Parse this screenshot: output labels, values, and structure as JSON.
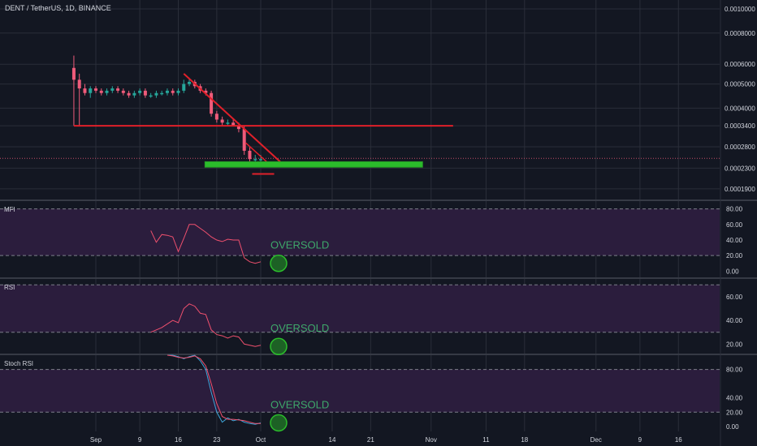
{
  "header": {
    "symbol_title": "DENT / TetherUS, 1D, BINANCE"
  },
  "colors": {
    "background": "#131722",
    "grid": "#2a2e39",
    "up_candle": "#26a69a",
    "down_candle": "#ef5b7a",
    "trendline": "#e0202a",
    "support_zone": "#2bbd2b",
    "oscillator_line": "#f0506e",
    "stoch_k": "#3da5d9",
    "stoch_d": "#f0506e",
    "band_fill": "#2b1d3d",
    "annotation_text": "#3ea86a",
    "annotation_circle": "#2bbd2b",
    "axis_text": "#d1d4dc"
  },
  "x_axis": {
    "tick_labels": [
      "Sep",
      "9",
      "16",
      "23",
      "Oct",
      "14",
      "21",
      "Nov",
      "11",
      "18",
      "Dec",
      "9",
      "16"
    ]
  },
  "price_axis": {
    "tick_labels": [
      "0.0010000",
      "0.0008000",
      "0.0006000",
      "0.0005000",
      "0.0004000",
      "0.0003400",
      "0.0002800",
      "0.0002300",
      "0.0001900"
    ],
    "scale": "log"
  },
  "panes": {
    "mfi": {
      "label": "MFI",
      "ticks": [
        "80.00",
        "60.00",
        "40.00",
        "20.00",
        "0.00"
      ],
      "annotation": "OVERSOLD"
    },
    "rsi": {
      "label": "RSI",
      "ticks": [
        "60.00",
        "40.00",
        "20.00"
      ],
      "annotation": "OVERSOLD"
    },
    "stoch": {
      "label": "Stoch RSI",
      "ticks": [
        "80.00",
        "40.00",
        "20.00",
        "0.00"
      ],
      "annotation": "OVERSOLD"
    }
  },
  "chart_data": [
    {
      "type": "candlestick",
      "title": "DENT / TetherUS, 1D, BINANCE",
      "x_range": [
        "Aug 27",
        "Dec 18"
      ],
      "y_scale": "log",
      "ylim": [
        0.00018,
        0.00105
      ],
      "candles": [
        {
          "date": "Aug 28",
          "o": 0.00058,
          "h": 0.00065,
          "l": 0.00034,
          "c": 0.00052
        },
        {
          "date": "Aug 29",
          "o": 0.00052,
          "h": 0.00055,
          "l": 0.00034,
          "c": 0.00048
        },
        {
          "date": "Aug 30",
          "o": 0.00048,
          "h": 0.0005,
          "l": 0.00045,
          "c": 0.00046
        },
        {
          "date": "Aug 31",
          "o": 0.00046,
          "h": 0.00049,
          "l": 0.00044,
          "c": 0.00048
        },
        {
          "date": "Sep 1",
          "o": 0.00048,
          "h": 0.00049,
          "l": 0.00046,
          "c": 0.00047
        },
        {
          "date": "Sep 2",
          "o": 0.00047,
          "h": 0.00048,
          "l": 0.00045,
          "c": 0.00046
        },
        {
          "date": "Sep 3",
          "o": 0.00046,
          "h": 0.00048,
          "l": 0.00045,
          "c": 0.00047
        },
        {
          "date": "Sep 4",
          "o": 0.00047,
          "h": 0.00049,
          "l": 0.00046,
          "c": 0.00048
        },
        {
          "date": "Sep 5",
          "o": 0.00048,
          "h": 0.00049,
          "l": 0.00046,
          "c": 0.00047
        },
        {
          "date": "Sep 6",
          "o": 0.00047,
          "h": 0.00048,
          "l": 0.00045,
          "c": 0.00046
        },
        {
          "date": "Sep 7",
          "o": 0.00046,
          "h": 0.00047,
          "l": 0.00044,
          "c": 0.00045
        },
        {
          "date": "Sep 8",
          "o": 0.00045,
          "h": 0.00047,
          "l": 0.00044,
          "c": 0.00046
        },
        {
          "date": "Sep 9",
          "o": 0.00046,
          "h": 0.00048,
          "l": 0.00045,
          "c": 0.00047
        },
        {
          "date": "Sep 10",
          "o": 0.00047,
          "h": 0.00048,
          "l": 0.00044,
          "c": 0.00045
        },
        {
          "date": "Sep 11",
          "o": 0.00045,
          "h": 0.00046,
          "l": 0.00044,
          "c": 0.00045
        },
        {
          "date": "Sep 12",
          "o": 0.00045,
          "h": 0.00047,
          "l": 0.00044,
          "c": 0.00046
        },
        {
          "date": "Sep 13",
          "o": 0.00046,
          "h": 0.00047,
          "l": 0.00045,
          "c": 0.00046
        },
        {
          "date": "Sep 14",
          "o": 0.00046,
          "h": 0.00048,
          "l": 0.00045,
          "c": 0.00047
        },
        {
          "date": "Sep 15",
          "o": 0.00047,
          "h": 0.00048,
          "l": 0.00045,
          "c": 0.00046
        },
        {
          "date": "Sep 16",
          "o": 0.00046,
          "h": 0.00048,
          "l": 0.00045,
          "c": 0.00047
        },
        {
          "date": "Sep 17",
          "o": 0.00047,
          "h": 0.00052,
          "l": 0.00046,
          "c": 0.0005
        },
        {
          "date": "Sep 18",
          "o": 0.0005,
          "h": 0.00053,
          "l": 0.00049,
          "c": 0.00051
        },
        {
          "date": "Sep 19",
          "o": 0.00051,
          "h": 0.00052,
          "l": 0.00048,
          "c": 0.00049
        },
        {
          "date": "Sep 20",
          "o": 0.00049,
          "h": 0.0005,
          "l": 0.00046,
          "c": 0.00047
        },
        {
          "date": "Sep 21",
          "o": 0.00047,
          "h": 0.00048,
          "l": 0.00045,
          "c": 0.00046
        },
        {
          "date": "Sep 22",
          "o": 0.00046,
          "h": 0.00047,
          "l": 0.00037,
          "c": 0.00038
        },
        {
          "date": "Sep 23",
          "o": 0.00038,
          "h": 0.00039,
          "l": 0.00035,
          "c": 0.00036
        },
        {
          "date": "Sep 24",
          "o": 0.00036,
          "h": 0.00037,
          "l": 0.00034,
          "c": 0.00035
        },
        {
          "date": "Sep 25",
          "o": 0.00035,
          "h": 0.00036,
          "l": 0.00034,
          "c": 0.00035
        },
        {
          "date": "Sep 26",
          "o": 0.00035,
          "h": 0.00036,
          "l": 0.00034,
          "c": 0.00034
        },
        {
          "date": "Sep 27",
          "o": 0.00034,
          "h": 0.00035,
          "l": 0.00032,
          "c": 0.00033
        },
        {
          "date": "Sep 28",
          "o": 0.00033,
          "h": 0.00034,
          "l": 0.00026,
          "c": 0.00027
        },
        {
          "date": "Sep 29",
          "o": 0.00027,
          "h": 0.00028,
          "l": 0.00024,
          "c": 0.00025
        },
        {
          "date": "Sep 30",
          "o": 0.00025,
          "h": 0.00026,
          "l": 0.00024,
          "c": 0.00025
        },
        {
          "date": "Oct 1",
          "o": 0.00025,
          "h": 0.00026,
          "l": 0.00024,
          "c": 0.00025
        }
      ],
      "drawings": {
        "horizontal_line_price": 0.00034,
        "upper_trendline": [
          {
            "date": "Sep 17",
            "price": 0.00055
          },
          {
            "date": "Oct 4",
            "price": 0.00024
          }
        ],
        "lower_trendline": [
          {
            "date": "Sep 28",
            "price": 0.00029
          },
          {
            "date": "Oct 2",
            "price": 0.00024
          }
        ],
        "support_zone": {
          "from": "Sep 21",
          "to": "Oct 30",
          "price_low": 0.000232,
          "price_high": 0.000244
        },
        "target_marker_price": 0.000218
      }
    },
    {
      "type": "line",
      "title": "MFI",
      "ylim": [
        0,
        90
      ],
      "bands": [
        20,
        80
      ],
      "x": [
        "Sep 11",
        "Sep 12",
        "Sep 13",
        "Sep 14",
        "Sep 15",
        "Sep 16",
        "Sep 17",
        "Sep 18",
        "Sep 19",
        "Sep 20",
        "Sep 21",
        "Sep 22",
        "Sep 23",
        "Sep 24",
        "Sep 25",
        "Sep 26",
        "Sep 27",
        "Sep 28",
        "Sep 29",
        "Sep 30",
        "Oct 1"
      ],
      "series": [
        {
          "values": [
            52,
            37,
            47,
            46,
            44,
            25,
            42,
            60,
            60,
            55,
            50,
            44,
            40,
            38,
            41,
            40,
            40,
            17,
            12,
            10,
            12
          ]
        }
      ],
      "annotation": {
        "text": "OVERSOLD",
        "value": 10
      }
    },
    {
      "type": "line",
      "title": "RSI",
      "ylim": [
        0,
        75
      ],
      "bands": [
        30,
        70
      ],
      "x": [
        "Sep 11",
        "Sep 13",
        "Sep 15",
        "Sep 16",
        "Sep 17",
        "Sep 18",
        "Sep 19",
        "Sep 20",
        "Sep 21",
        "Sep 22",
        "Sep 23",
        "Sep 24",
        "Sep 25",
        "Sep 26",
        "Sep 27",
        "Sep 28",
        "Sep 29",
        "Sep 30",
        "Oct 1"
      ],
      "series": [
        {
          "values": [
            30,
            34,
            40,
            38,
            50,
            54,
            52,
            46,
            45,
            32,
            28,
            27,
            25,
            27,
            26,
            20,
            19,
            18,
            19
          ]
        }
      ],
      "annotation": {
        "text": "OVERSOLD",
        "value": 18
      }
    },
    {
      "type": "line",
      "title": "Stoch RSI",
      "ylim": [
        -10,
        100
      ],
      "bands": [
        20,
        80
      ],
      "x": [
        "Sep 14",
        "Sep 15",
        "Sep 16",
        "Sep 17",
        "Sep 18",
        "Sep 19",
        "Sep 20",
        "Sep 21",
        "Sep 22",
        "Sep 23",
        "Sep 24",
        "Sep 25",
        "Sep 26",
        "Sep 27",
        "Sep 28",
        "Sep 29",
        "Sep 30",
        "Oct 1"
      ],
      "series": [
        {
          "values": [
            100,
            100,
            98,
            95,
            98,
            100,
            92,
            80,
            48,
            20,
            6,
            12,
            8,
            10,
            6,
            4,
            3,
            5
          ]
        },
        {
          "values": [
            100,
            99,
            97,
            96,
            97,
            99,
            95,
            85,
            60,
            32,
            14,
            10,
            10,
            9,
            8,
            6,
            4,
            4
          ]
        }
      ],
      "annotation": {
        "text": "OVERSOLD",
        "value": 5
      }
    }
  ]
}
